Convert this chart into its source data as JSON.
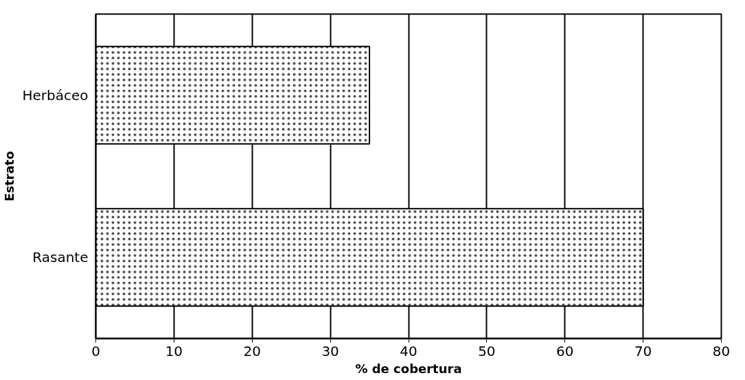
{
  "chart_data": {
    "type": "bar",
    "orientation": "horizontal",
    "xlabel": "% de cobertura",
    "ylabel": "Estrato",
    "categories": [
      "Herbáceo",
      "Rasante"
    ],
    "values": [
      35,
      70
    ],
    "color": "#ffffff",
    "xlim": [
      0,
      80
    ],
    "xticks": [
      0,
      10,
      20,
      30,
      40,
      50,
      60,
      70,
      80
    ],
    "grid": "x"
  }
}
